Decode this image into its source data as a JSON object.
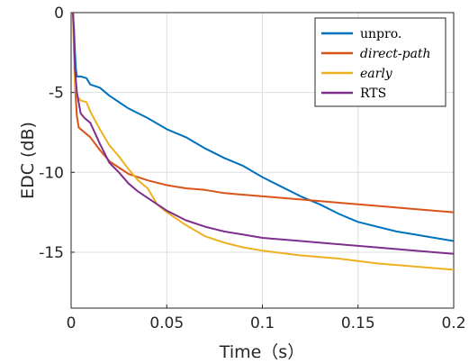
{
  "chart_data": {
    "type": "line",
    "xlabel": "Time（s）",
    "ylabel": "EDC (dB)",
    "xlim": [
      0,
      0.2
    ],
    "ylim": [
      -18.5,
      0
    ],
    "xticks": [
      0,
      0.05,
      0.1,
      0.15,
      0.2
    ],
    "xtick_labels": [
      "0",
      "0.05",
      "0.1",
      "0.15",
      "0.2"
    ],
    "yticks": [
      0,
      -5,
      -10,
      -15
    ],
    "ytick_labels": [
      "0",
      "-5",
      "-10",
      "-15"
    ],
    "grid": true,
    "legend_position": "top-right",
    "series": [
      {
        "name": "unpro.",
        "italic": false,
        "color": "#0072BD",
        "points": [
          [
            0.001,
            0
          ],
          [
            0.0015,
            -1
          ],
          [
            0.002,
            -2.5
          ],
          [
            0.0025,
            -3.5
          ],
          [
            0.003,
            -4.0
          ],
          [
            0.005,
            -4.0
          ],
          [
            0.008,
            -4.1
          ],
          [
            0.01,
            -4.5
          ],
          [
            0.015,
            -4.7
          ],
          [
            0.02,
            -5.2
          ],
          [
            0.03,
            -6.0
          ],
          [
            0.04,
            -6.6
          ],
          [
            0.05,
            -7.3
          ],
          [
            0.06,
            -7.8
          ],
          [
            0.07,
            -8.5
          ],
          [
            0.08,
            -9.1
          ],
          [
            0.09,
            -9.6
          ],
          [
            0.1,
            -10.3
          ],
          [
            0.11,
            -10.9
          ],
          [
            0.12,
            -11.5
          ],
          [
            0.13,
            -12.0
          ],
          [
            0.14,
            -12.6
          ],
          [
            0.15,
            -13.1
          ],
          [
            0.16,
            -13.4
          ],
          [
            0.17,
            -13.7
          ],
          [
            0.18,
            -13.9
          ],
          [
            0.19,
            -14.1
          ],
          [
            0.2,
            -14.3
          ]
        ]
      },
      {
        "name": "direct-path",
        "italic": true,
        "color": "#D95319",
        "points": [
          [
            0.001,
            0
          ],
          [
            0.0015,
            -2
          ],
          [
            0.002,
            -4.5
          ],
          [
            0.003,
            -6.5
          ],
          [
            0.004,
            -7.2
          ],
          [
            0.006,
            -7.4
          ],
          [
            0.01,
            -7.8
          ],
          [
            0.015,
            -8.6
          ],
          [
            0.02,
            -9.3
          ],
          [
            0.025,
            -9.7
          ],
          [
            0.03,
            -10.1
          ],
          [
            0.04,
            -10.5
          ],
          [
            0.05,
            -10.8
          ],
          [
            0.06,
            -11.0
          ],
          [
            0.07,
            -11.1
          ],
          [
            0.08,
            -11.3
          ],
          [
            0.09,
            -11.4
          ],
          [
            0.1,
            -11.5
          ],
          [
            0.12,
            -11.7
          ],
          [
            0.14,
            -11.9
          ],
          [
            0.16,
            -12.1
          ],
          [
            0.18,
            -12.3
          ],
          [
            0.2,
            -12.5
          ]
        ]
      },
      {
        "name": "early",
        "italic": true,
        "color": "#EDB120",
        "points": [
          [
            0.001,
            0
          ],
          [
            0.0015,
            -2.5
          ],
          [
            0.002,
            -4.5
          ],
          [
            0.003,
            -5.2
          ],
          [
            0.005,
            -5.5
          ],
          [
            0.008,
            -5.6
          ],
          [
            0.01,
            -6.2
          ],
          [
            0.015,
            -7.3
          ],
          [
            0.02,
            -8.3
          ],
          [
            0.025,
            -9.0
          ],
          [
            0.03,
            -9.8
          ],
          [
            0.035,
            -10.5
          ],
          [
            0.04,
            -11.0
          ],
          [
            0.045,
            -12.0
          ],
          [
            0.05,
            -12.5
          ],
          [
            0.06,
            -13.3
          ],
          [
            0.07,
            -14.0
          ],
          [
            0.08,
            -14.4
          ],
          [
            0.09,
            -14.7
          ],
          [
            0.1,
            -14.9
          ],
          [
            0.12,
            -15.2
          ],
          [
            0.14,
            -15.4
          ],
          [
            0.16,
            -15.7
          ],
          [
            0.18,
            -15.9
          ],
          [
            0.2,
            -16.1
          ]
        ]
      },
      {
        "name": "RTS",
        "italic": false,
        "color": "#7E2F8E",
        "points": [
          [
            0.001,
            0
          ],
          [
            0.0015,
            -1.5
          ],
          [
            0.002,
            -3.5
          ],
          [
            0.003,
            -5.0
          ],
          [
            0.005,
            -6.3
          ],
          [
            0.007,
            -6.6
          ],
          [
            0.01,
            -6.9
          ],
          [
            0.015,
            -8.2
          ],
          [
            0.02,
            -9.4
          ],
          [
            0.025,
            -10.0
          ],
          [
            0.03,
            -10.7
          ],
          [
            0.035,
            -11.2
          ],
          [
            0.04,
            -11.6
          ],
          [
            0.05,
            -12.4
          ],
          [
            0.06,
            -13.0
          ],
          [
            0.07,
            -13.4
          ],
          [
            0.08,
            -13.7
          ],
          [
            0.09,
            -13.9
          ],
          [
            0.1,
            -14.1
          ],
          [
            0.12,
            -14.3
          ],
          [
            0.14,
            -14.5
          ],
          [
            0.16,
            -14.7
          ],
          [
            0.18,
            -14.9
          ],
          [
            0.2,
            -15.1
          ]
        ]
      }
    ]
  }
}
